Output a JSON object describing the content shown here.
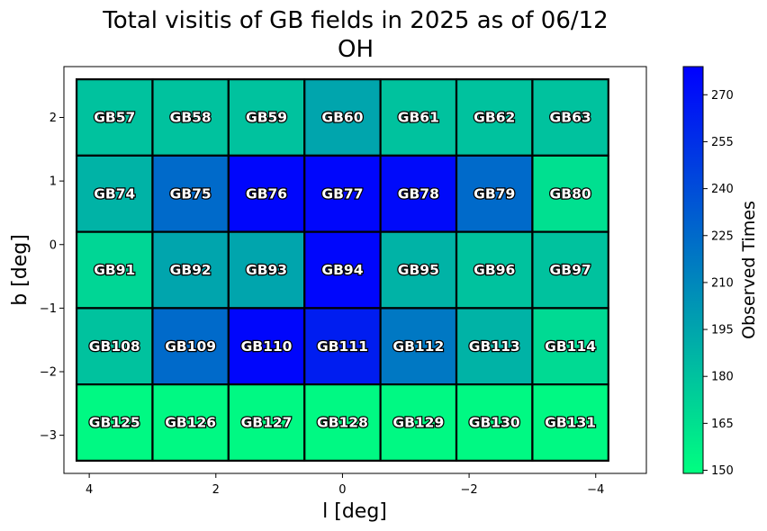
{
  "chart_data": {
    "type": "heatmap",
    "title": "Total visitis of GB fields in 2025 as of 06/12",
    "subtitle": "OH",
    "xlabel": "l [deg]",
    "ylabel": "b [deg]",
    "xlim": [
      4.4,
      -4.8
    ],
    "ylim": [
      -3.6,
      2.8
    ],
    "x_inverted": true,
    "xticks": [
      4,
      2,
      0,
      -2,
      -4
    ],
    "xtick_labels": [
      "4",
      "2",
      "0",
      "−2",
      "−4"
    ],
    "yticks": [
      2,
      1,
      0,
      -1,
      -2,
      -3
    ],
    "ytick_labels": [
      "2",
      "1",
      "0",
      "−1",
      "−2",
      "−3"
    ],
    "grid": false,
    "colormap": {
      "low_color": "#00ff80",
      "high_color": "#0000ff"
    },
    "colorbar": {
      "label": "Observed Times",
      "range": [
        149,
        279
      ],
      "ticks": [
        150,
        165,
        180,
        195,
        210,
        225,
        240,
        255,
        270
      ]
    },
    "cell_width_deg": 1.2,
    "cell_height_deg": 1.2,
    "cells": [
      {
        "name": "GB57",
        "l": 3.6,
        "b": 2.0,
        "value": 180
      },
      {
        "name": "GB58",
        "l": 2.4,
        "b": 2.0,
        "value": 180
      },
      {
        "name": "GB59",
        "l": 1.2,
        "b": 2.0,
        "value": 180
      },
      {
        "name": "GB60",
        "l": 0.0,
        "b": 2.0,
        "value": 195
      },
      {
        "name": "GB61",
        "l": -1.2,
        "b": 2.0,
        "value": 180
      },
      {
        "name": "GB62",
        "l": -2.4,
        "b": 2.0,
        "value": 180
      },
      {
        "name": "GB63",
        "l": -3.6,
        "b": 2.0,
        "value": 180
      },
      {
        "name": "GB74",
        "l": 3.6,
        "b": 0.8,
        "value": 188
      },
      {
        "name": "GB75",
        "l": 2.4,
        "b": 0.8,
        "value": 225
      },
      {
        "name": "GB76",
        "l": 1.2,
        "b": 0.8,
        "value": 276
      },
      {
        "name": "GB77",
        "l": 0.0,
        "b": 0.8,
        "value": 276
      },
      {
        "name": "GB78",
        "l": -1.2,
        "b": 0.8,
        "value": 274
      },
      {
        "name": "GB79",
        "l": -2.4,
        "b": 0.8,
        "value": 225
      },
      {
        "name": "GB80",
        "l": -3.6,
        "b": 0.8,
        "value": 165
      },
      {
        "name": "GB91",
        "l": 3.6,
        "b": -0.4,
        "value": 170
      },
      {
        "name": "GB92",
        "l": 2.4,
        "b": -0.4,
        "value": 195
      },
      {
        "name": "GB93",
        "l": 1.2,
        "b": -0.4,
        "value": 195
      },
      {
        "name": "GB94",
        "l": 0.0,
        "b": -0.4,
        "value": 276
      },
      {
        "name": "GB95",
        "l": -1.2,
        "b": -0.4,
        "value": 188
      },
      {
        "name": "GB96",
        "l": -2.4,
        "b": -0.4,
        "value": 180
      },
      {
        "name": "GB97",
        "l": -3.6,
        "b": -0.4,
        "value": 180
      },
      {
        "name": "GB108",
        "l": 3.6,
        "b": -1.6,
        "value": 180
      },
      {
        "name": "GB109",
        "l": 2.4,
        "b": -1.6,
        "value": 225
      },
      {
        "name": "GB110",
        "l": 1.2,
        "b": -1.6,
        "value": 276
      },
      {
        "name": "GB111",
        "l": 0.0,
        "b": -1.6,
        "value": 264
      },
      {
        "name": "GB112",
        "l": -1.2,
        "b": -1.6,
        "value": 218
      },
      {
        "name": "GB113",
        "l": -2.4,
        "b": -1.6,
        "value": 188
      },
      {
        "name": "GB114",
        "l": -3.6,
        "b": -1.6,
        "value": 168
      },
      {
        "name": "GB125",
        "l": 3.6,
        "b": -2.8,
        "value": 152
      },
      {
        "name": "GB126",
        "l": 2.4,
        "b": -2.8,
        "value": 152
      },
      {
        "name": "GB127",
        "l": 1.2,
        "b": -2.8,
        "value": 152
      },
      {
        "name": "GB128",
        "l": 0.0,
        "b": -2.8,
        "value": 152
      },
      {
        "name": "GB129",
        "l": -1.2,
        "b": -2.8,
        "value": 152
      },
      {
        "name": "GB130",
        "l": -2.4,
        "b": -2.8,
        "value": 152
      },
      {
        "name": "GB131",
        "l": -3.6,
        "b": -2.8,
        "value": 152
      }
    ]
  }
}
